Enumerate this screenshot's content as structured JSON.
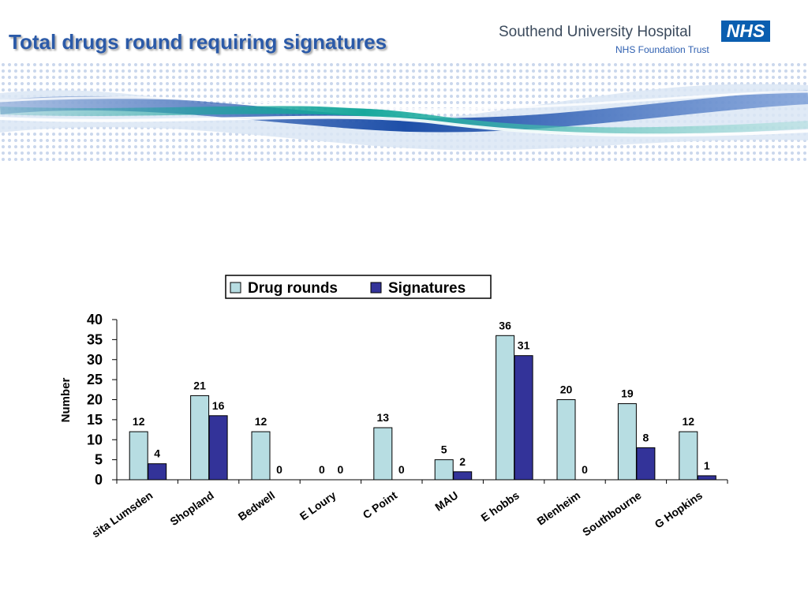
{
  "slide": {
    "title": "Total drugs round requiring signatures"
  },
  "header": {
    "organisation": "Southend University Hospital",
    "trust": "NHS Foundation Trust",
    "logo_text": "NHS"
  },
  "colors": {
    "title": "#2b5aa8",
    "drug_rounds": "#b7dde2",
    "signatures": "#333399"
  },
  "chart_data": {
    "type": "bar",
    "categories": [
      "sita Lumsden",
      "Shopland",
      "Bedwell",
      "E Loury",
      "C Point",
      "MAU",
      "E hobbs",
      "Blenheim",
      "Southbourne",
      "G Hopkins"
    ],
    "series": [
      {
        "name": "Drug rounds",
        "values": [
          12,
          21,
          12,
          0,
          13,
          5,
          36,
          20,
          19,
          12
        ],
        "color": "#b7dde2"
      },
      {
        "name": "Signatures",
        "values": [
          4,
          16,
          0,
          0,
          0,
          2,
          31,
          0,
          8,
          1
        ],
        "color": "#333399"
      }
    ],
    "xlabel": "",
    "ylabel": "Number",
    "ylim": [
      0,
      40
    ],
    "yticks": [
      0,
      5,
      10,
      15,
      20,
      25,
      30,
      35,
      40
    ],
    "legend": "top",
    "grid": false
  }
}
